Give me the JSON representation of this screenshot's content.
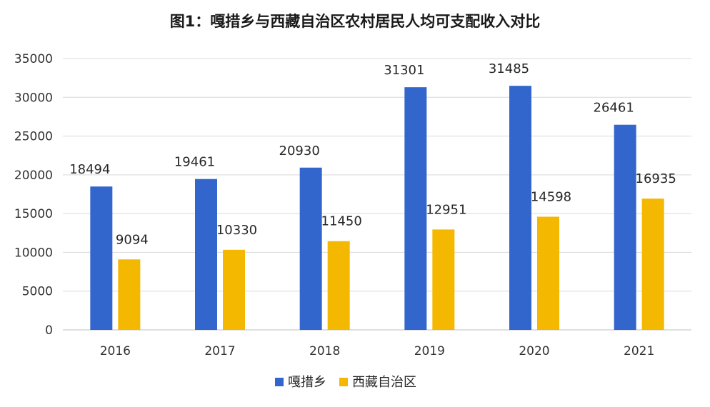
{
  "chart_data": {
    "type": "bar",
    "title": "图1：嘎措乡与西藏自治区农村居民人均可支配收入对比",
    "categories": [
      "2016",
      "2017",
      "2018",
      "2019",
      "2020",
      "2021"
    ],
    "series": [
      {
        "name": "嘎措乡",
        "color": "#3366CC",
        "values": [
          18494,
          19461,
          20930,
          31301,
          31485,
          26461
        ]
      },
      {
        "name": "西藏自治区",
        "color": "#F5B800",
        "values": [
          9094,
          10330,
          11450,
          12951,
          14598,
          16935
        ]
      }
    ],
    "ylim": [
      0,
      35000
    ],
    "yticks": [
      0,
      5000,
      10000,
      15000,
      20000,
      25000,
      30000,
      35000
    ],
    "grid": true,
    "legend_position": "bottom-center"
  }
}
